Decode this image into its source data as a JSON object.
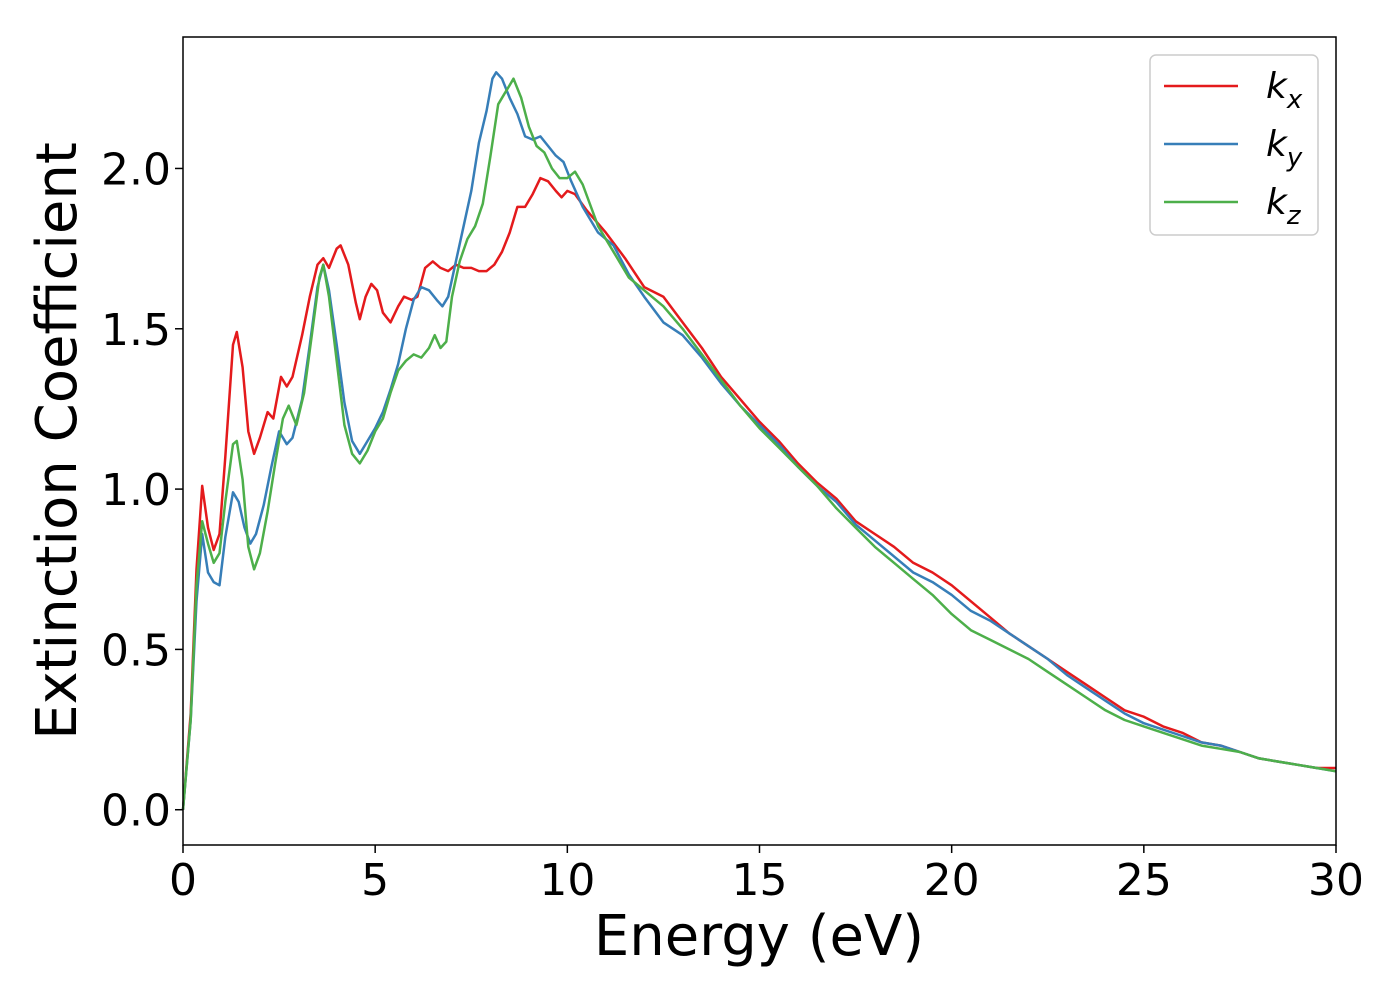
{
  "chart_data": {
    "type": "line",
    "xlabel": "Energy (eV)",
    "ylabel": "Extinction Coefficient",
    "xlim": [
      0,
      30
    ],
    "ylim": [
      -0.11,
      2.41
    ],
    "xticks": [
      0,
      5,
      10,
      15,
      20,
      25,
      30
    ],
    "xtick_labels": [
      "0",
      "5",
      "10",
      "15",
      "20",
      "25",
      "30"
    ],
    "yticks": [
      0.0,
      0.5,
      1.0,
      1.5,
      2.0
    ],
    "ytick_labels": [
      "0.0",
      "0.5",
      "1.0",
      "1.5",
      "2.0"
    ],
    "grid": false,
    "legend_position": "top-right",
    "series": [
      {
        "name": "k_x",
        "legend_base": "k",
        "legend_sub": "x",
        "color": "#e41a1c",
        "points": [
          [
            0,
            0
          ],
          [
            0.2,
            0.3
          ],
          [
            0.35,
            0.75
          ],
          [
            0.5,
            1.01
          ],
          [
            0.65,
            0.88
          ],
          [
            0.8,
            0.81
          ],
          [
            0.95,
            0.86
          ],
          [
            1.1,
            1.1
          ],
          [
            1.3,
            1.45
          ],
          [
            1.4,
            1.49
          ],
          [
            1.55,
            1.38
          ],
          [
            1.7,
            1.18
          ],
          [
            1.85,
            1.11
          ],
          [
            2.0,
            1.16
          ],
          [
            2.2,
            1.24
          ],
          [
            2.35,
            1.22
          ],
          [
            2.55,
            1.35
          ],
          [
            2.7,
            1.32
          ],
          [
            2.85,
            1.35
          ],
          [
            3.1,
            1.48
          ],
          [
            3.3,
            1.6
          ],
          [
            3.5,
            1.7
          ],
          [
            3.65,
            1.72
          ],
          [
            3.8,
            1.69
          ],
          [
            4.0,
            1.75
          ],
          [
            4.1,
            1.76
          ],
          [
            4.3,
            1.7
          ],
          [
            4.5,
            1.58
          ],
          [
            4.6,
            1.53
          ],
          [
            4.75,
            1.6
          ],
          [
            4.9,
            1.64
          ],
          [
            5.05,
            1.62
          ],
          [
            5.2,
            1.55
          ],
          [
            5.4,
            1.52
          ],
          [
            5.6,
            1.57
          ],
          [
            5.75,
            1.6
          ],
          [
            5.95,
            1.59
          ],
          [
            6.1,
            1.6
          ],
          [
            6.3,
            1.69
          ],
          [
            6.5,
            1.71
          ],
          [
            6.7,
            1.69
          ],
          [
            6.9,
            1.68
          ],
          [
            7.1,
            1.7
          ],
          [
            7.3,
            1.69
          ],
          [
            7.5,
            1.69
          ],
          [
            7.7,
            1.68
          ],
          [
            7.9,
            1.68
          ],
          [
            8.1,
            1.7
          ],
          [
            8.3,
            1.74
          ],
          [
            8.5,
            1.8
          ],
          [
            8.7,
            1.88
          ],
          [
            8.9,
            1.88
          ],
          [
            9.1,
            1.92
          ],
          [
            9.3,
            1.97
          ],
          [
            9.5,
            1.96
          ],
          [
            9.7,
            1.93
          ],
          [
            9.85,
            1.91
          ],
          [
            10.0,
            1.93
          ],
          [
            10.2,
            1.92
          ],
          [
            10.5,
            1.87
          ],
          [
            11.0,
            1.8
          ],
          [
            11.5,
            1.72
          ],
          [
            12.0,
            1.63
          ],
          [
            12.5,
            1.6
          ],
          [
            13.0,
            1.52
          ],
          [
            13.5,
            1.44
          ],
          [
            14.0,
            1.35
          ],
          [
            14.5,
            1.28
          ],
          [
            15.0,
            1.21
          ],
          [
            15.5,
            1.15
          ],
          [
            16.0,
            1.08
          ],
          [
            16.5,
            1.02
          ],
          [
            17.0,
            0.97
          ],
          [
            17.5,
            0.9
          ],
          [
            18.0,
            0.86
          ],
          [
            18.5,
            0.82
          ],
          [
            19.0,
            0.77
          ],
          [
            19.5,
            0.74
          ],
          [
            20.0,
            0.7
          ],
          [
            20.5,
            0.65
          ],
          [
            21.0,
            0.6
          ],
          [
            21.5,
            0.55
          ],
          [
            22.0,
            0.51
          ],
          [
            22.5,
            0.47
          ],
          [
            23.0,
            0.43
          ],
          [
            23.5,
            0.39
          ],
          [
            24.0,
            0.35
          ],
          [
            24.5,
            0.31
          ],
          [
            25.0,
            0.29
          ],
          [
            25.5,
            0.26
          ],
          [
            26.0,
            0.24
          ],
          [
            26.5,
            0.21
          ],
          [
            27.0,
            0.2
          ],
          [
            27.5,
            0.18
          ],
          [
            28.0,
            0.16
          ],
          [
            28.5,
            0.15
          ],
          [
            29.0,
            0.14
          ],
          [
            29.5,
            0.13
          ],
          [
            30.0,
            0.13
          ]
        ]
      },
      {
        "name": "k_y",
        "legend_base": "k",
        "legend_sub": "y",
        "color": "#377eb8",
        "points": [
          [
            0,
            0
          ],
          [
            0.2,
            0.28
          ],
          [
            0.35,
            0.65
          ],
          [
            0.5,
            0.86
          ],
          [
            0.65,
            0.74
          ],
          [
            0.8,
            0.71
          ],
          [
            0.95,
            0.7
          ],
          [
            1.1,
            0.85
          ],
          [
            1.3,
            0.99
          ],
          [
            1.45,
            0.96
          ],
          [
            1.6,
            0.88
          ],
          [
            1.75,
            0.83
          ],
          [
            1.9,
            0.86
          ],
          [
            2.1,
            0.95
          ],
          [
            2.3,
            1.07
          ],
          [
            2.5,
            1.18
          ],
          [
            2.7,
            1.14
          ],
          [
            2.85,
            1.16
          ],
          [
            3.1,
            1.28
          ],
          [
            3.3,
            1.45
          ],
          [
            3.5,
            1.63
          ],
          [
            3.65,
            1.7
          ],
          [
            3.8,
            1.62
          ],
          [
            4.0,
            1.45
          ],
          [
            4.2,
            1.27
          ],
          [
            4.4,
            1.15
          ],
          [
            4.6,
            1.11
          ],
          [
            4.8,
            1.15
          ],
          [
            5.0,
            1.19
          ],
          [
            5.2,
            1.24
          ],
          [
            5.4,
            1.31
          ],
          [
            5.6,
            1.39
          ],
          [
            5.8,
            1.5
          ],
          [
            6.0,
            1.59
          ],
          [
            6.2,
            1.63
          ],
          [
            6.4,
            1.62
          ],
          [
            6.6,
            1.59
          ],
          [
            6.75,
            1.57
          ],
          [
            6.9,
            1.6
          ],
          [
            7.1,
            1.71
          ],
          [
            7.3,
            1.82
          ],
          [
            7.5,
            1.93
          ],
          [
            7.7,
            2.08
          ],
          [
            7.9,
            2.18
          ],
          [
            8.05,
            2.28
          ],
          [
            8.15,
            2.3
          ],
          [
            8.3,
            2.28
          ],
          [
            8.5,
            2.22
          ],
          [
            8.7,
            2.17
          ],
          [
            8.9,
            2.1
          ],
          [
            9.1,
            2.09
          ],
          [
            9.3,
            2.1
          ],
          [
            9.5,
            2.07
          ],
          [
            9.7,
            2.04
          ],
          [
            9.9,
            2.02
          ],
          [
            10.1,
            1.96
          ],
          [
            10.4,
            1.88
          ],
          [
            10.8,
            1.8
          ],
          [
            11.2,
            1.76
          ],
          [
            11.6,
            1.67
          ],
          [
            12.0,
            1.6
          ],
          [
            12.5,
            1.52
          ],
          [
            13.0,
            1.48
          ],
          [
            13.5,
            1.41
          ],
          [
            14.0,
            1.33
          ],
          [
            14.5,
            1.26
          ],
          [
            15.0,
            1.2
          ],
          [
            15.5,
            1.14
          ],
          [
            16.0,
            1.07
          ],
          [
            16.5,
            1.01
          ],
          [
            17.0,
            0.96
          ],
          [
            17.5,
            0.89
          ],
          [
            18.0,
            0.84
          ],
          [
            18.5,
            0.79
          ],
          [
            19.0,
            0.74
          ],
          [
            19.5,
            0.71
          ],
          [
            20.0,
            0.67
          ],
          [
            20.5,
            0.62
          ],
          [
            21.0,
            0.59
          ],
          [
            21.5,
            0.55
          ],
          [
            22.0,
            0.51
          ],
          [
            22.5,
            0.47
          ],
          [
            23.0,
            0.42
          ],
          [
            23.5,
            0.38
          ],
          [
            24.0,
            0.34
          ],
          [
            24.5,
            0.3
          ],
          [
            25.0,
            0.27
          ],
          [
            25.5,
            0.25
          ],
          [
            26.0,
            0.23
          ],
          [
            26.5,
            0.21
          ],
          [
            27.0,
            0.2
          ],
          [
            27.5,
            0.18
          ],
          [
            28.0,
            0.16
          ],
          [
            28.5,
            0.15
          ],
          [
            29.0,
            0.14
          ],
          [
            29.5,
            0.13
          ],
          [
            30.0,
            0.12
          ]
        ]
      },
      {
        "name": "k_z",
        "legend_base": "k",
        "legend_sub": "z",
        "color": "#4daf4a",
        "points": [
          [
            0,
            0
          ],
          [
            0.2,
            0.28
          ],
          [
            0.35,
            0.7
          ],
          [
            0.5,
            0.9
          ],
          [
            0.65,
            0.83
          ],
          [
            0.8,
            0.77
          ],
          [
            0.95,
            0.8
          ],
          [
            1.1,
            0.96
          ],
          [
            1.3,
            1.14
          ],
          [
            1.4,
            1.15
          ],
          [
            1.55,
            1.03
          ],
          [
            1.7,
            0.82
          ],
          [
            1.85,
            0.75
          ],
          [
            2.0,
            0.8
          ],
          [
            2.2,
            0.93
          ],
          [
            2.4,
            1.08
          ],
          [
            2.6,
            1.22
          ],
          [
            2.75,
            1.26
          ],
          [
            2.95,
            1.2
          ],
          [
            3.15,
            1.3
          ],
          [
            3.35,
            1.48
          ],
          [
            3.55,
            1.66
          ],
          [
            3.65,
            1.7
          ],
          [
            3.8,
            1.6
          ],
          [
            4.0,
            1.4
          ],
          [
            4.2,
            1.2
          ],
          [
            4.4,
            1.11
          ],
          [
            4.6,
            1.08
          ],
          [
            4.8,
            1.12
          ],
          [
            5.0,
            1.18
          ],
          [
            5.2,
            1.22
          ],
          [
            5.4,
            1.3
          ],
          [
            5.6,
            1.37
          ],
          [
            5.8,
            1.4
          ],
          [
            6.0,
            1.42
          ],
          [
            6.2,
            1.41
          ],
          [
            6.4,
            1.44
          ],
          [
            6.55,
            1.48
          ],
          [
            6.7,
            1.44
          ],
          [
            6.85,
            1.46
          ],
          [
            7.0,
            1.6
          ],
          [
            7.2,
            1.71
          ],
          [
            7.4,
            1.78
          ],
          [
            7.6,
            1.82
          ],
          [
            7.8,
            1.89
          ],
          [
            8.0,
            2.04
          ],
          [
            8.2,
            2.2
          ],
          [
            8.35,
            2.23
          ],
          [
            8.5,
            2.26
          ],
          [
            8.6,
            2.28
          ],
          [
            8.8,
            2.22
          ],
          [
            9.0,
            2.13
          ],
          [
            9.2,
            2.07
          ],
          [
            9.4,
            2.05
          ],
          [
            9.6,
            2.0
          ],
          [
            9.8,
            1.97
          ],
          [
            10.0,
            1.97
          ],
          [
            10.2,
            1.99
          ],
          [
            10.4,
            1.95
          ],
          [
            10.8,
            1.82
          ],
          [
            11.2,
            1.74
          ],
          [
            11.6,
            1.66
          ],
          [
            12.0,
            1.62
          ],
          [
            12.5,
            1.57
          ],
          [
            13.0,
            1.5
          ],
          [
            13.5,
            1.42
          ],
          [
            14.0,
            1.34
          ],
          [
            14.5,
            1.26
          ],
          [
            15.0,
            1.19
          ],
          [
            15.5,
            1.13
          ],
          [
            16.0,
            1.07
          ],
          [
            16.5,
            1.01
          ],
          [
            17.0,
            0.94
          ],
          [
            17.5,
            0.88
          ],
          [
            18.0,
            0.82
          ],
          [
            18.5,
            0.77
          ],
          [
            19.0,
            0.72
          ],
          [
            19.5,
            0.67
          ],
          [
            20.0,
            0.61
          ],
          [
            20.5,
            0.56
          ],
          [
            21.0,
            0.53
          ],
          [
            21.5,
            0.5
          ],
          [
            22.0,
            0.47
          ],
          [
            22.5,
            0.43
          ],
          [
            23.0,
            0.39
          ],
          [
            23.5,
            0.35
          ],
          [
            24.0,
            0.31
          ],
          [
            24.5,
            0.28
          ],
          [
            25.0,
            0.26
          ],
          [
            25.5,
            0.24
          ],
          [
            26.0,
            0.22
          ],
          [
            26.5,
            0.2
          ],
          [
            27.0,
            0.19
          ],
          [
            27.5,
            0.18
          ],
          [
            28.0,
            0.16
          ],
          [
            28.5,
            0.15
          ],
          [
            29.0,
            0.14
          ],
          [
            29.5,
            0.13
          ],
          [
            30.0,
            0.12
          ]
        ]
      }
    ]
  }
}
